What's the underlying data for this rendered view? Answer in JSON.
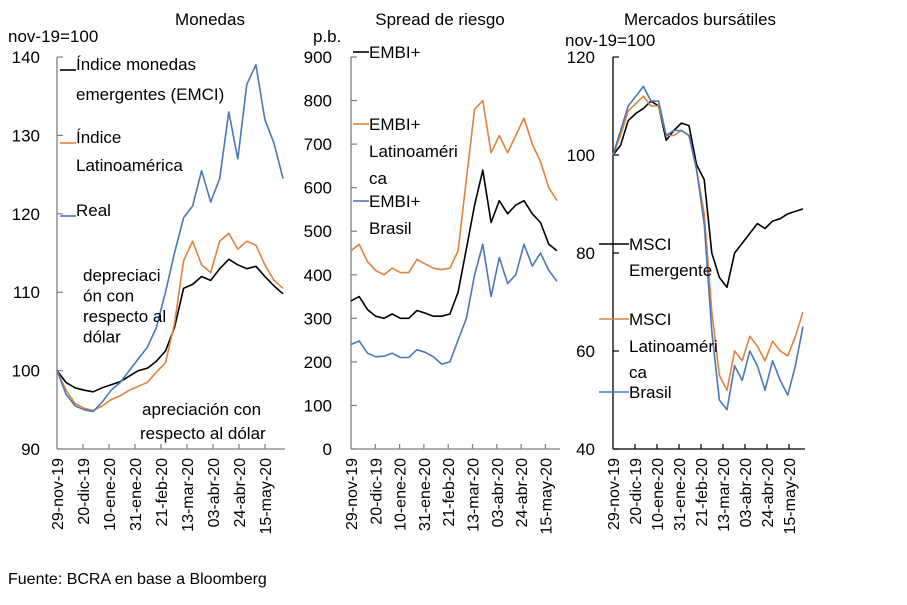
{
  "source": "Fuente: BCRA en base a Bloomberg",
  "colors": {
    "black": "#000000",
    "orange": "#e0823c",
    "blue": "#4a78b8",
    "axis": "#7f7f7f"
  },
  "chart_data": [
    {
      "type": "line",
      "title": "Monedas",
      "ylabel": "nov-19=100",
      "ylim": [
        90,
        140
      ],
      "yticks": [
        "90",
        "100",
        "110",
        "120",
        "130",
        "140"
      ],
      "categories": [
        "29-nov-19",
        "20-dic-19",
        "10-ene-20",
        "31-ene-20",
        "21-feb-20",
        "13-mar-20",
        "03-abr-20",
        "24-abr-20",
        "15-may-20"
      ],
      "annotations": [
        "depreciación con respecto al dólar",
        "apreciación con respecto al dólar"
      ],
      "annotation_lines": [
        [
          "depreciaci",
          "ón con",
          "respecto al",
          "dólar"
        ],
        [
          "apreciación con",
          "respecto al dólar"
        ]
      ],
      "legend": "top-left",
      "series": [
        {
          "name": "Índice monedas emergentes (EMCI)",
          "legend_lines": [
            "Índice monedas",
            "emergentes (EMCI)"
          ],
          "color": "black",
          "values": [
            100,
            98.5,
            97.8,
            97.5,
            97.3,
            97.8,
            98.2,
            98.6,
            99.3,
            100.0,
            100.3,
            101.2,
            102.5,
            105.5,
            110.5,
            111.0,
            112.0,
            111.5,
            113.0,
            114.2,
            113.5,
            113.0,
            113.3,
            112.0,
            110.8,
            109.8
          ]
        },
        {
          "name": "Índice Latinoamérica",
          "legend_lines": [
            "Índice",
            "Latinoamérica"
          ],
          "color": "orange",
          "values": [
            100,
            97.5,
            95.8,
            95.2,
            94.9,
            95.5,
            96.3,
            96.8,
            97.5,
            98.0,
            98.5,
            99.8,
            101.0,
            106.0,
            114.0,
            116.5,
            113.5,
            112.5,
            116.5,
            117.5,
            115.5,
            116.5,
            116.0,
            113.5,
            111.5,
            110.5
          ]
        },
        {
          "name": "Real",
          "legend_lines": [
            "Real"
          ],
          "color": "blue",
          "values": [
            100,
            97.0,
            95.5,
            95.0,
            94.8,
            96.0,
            97.5,
            98.5,
            100.0,
            101.5,
            103.0,
            105.5,
            110.0,
            115.0,
            119.5,
            121.0,
            125.5,
            121.5,
            124.5,
            133.0,
            127.0,
            136.5,
            139.0,
            132.0,
            129.0,
            124.5
          ]
        }
      ]
    },
    {
      "type": "line",
      "title": "Spread de riesgo",
      "ylabel": "p.b.",
      "ylim": [
        0,
        900
      ],
      "yticks": [
        "0",
        "100",
        "200",
        "300",
        "400",
        "500",
        "600",
        "700",
        "800",
        "900"
      ],
      "categories": [
        "29-nov-19",
        "20-dic-19",
        "10-ene-20",
        "31-ene-20",
        "21-feb-20",
        "13-mar-20",
        "03-abr-20",
        "24-abr-20",
        "15-may-20"
      ],
      "legend": "top-left",
      "series": [
        {
          "name": "EMBI+",
          "legend_lines": [
            "EMBI+"
          ],
          "color": "black",
          "values": [
            340,
            350,
            320,
            305,
            300,
            310,
            300,
            300,
            318,
            312,
            305,
            305,
            310,
            360,
            460,
            560,
            640,
            520,
            570,
            540,
            560,
            570,
            540,
            520,
            470,
            455
          ]
        },
        {
          "name": "EMBI+ Latinoamérica",
          "legend_lines": [
            "EMBI+",
            "Latinoaméri",
            "ca"
          ],
          "color": "orange",
          "values": [
            455,
            470,
            430,
            410,
            400,
            415,
            405,
            405,
            435,
            425,
            415,
            412,
            415,
            455,
            620,
            780,
            800,
            680,
            720,
            680,
            720,
            760,
            700,
            660,
            600,
            570
          ]
        },
        {
          "name": "EMBI+ Brasil",
          "legend_lines": [
            "EMBI+",
            "Brasil"
          ],
          "color": "blue",
          "values": [
            240,
            248,
            220,
            212,
            213,
            220,
            210,
            210,
            228,
            222,
            212,
            195,
            200,
            250,
            300,
            400,
            470,
            350,
            440,
            380,
            400,
            470,
            420,
            450,
            410,
            385
          ]
        }
      ]
    },
    {
      "type": "line",
      "title": "Mercados bursátiles",
      "ylabel": "nov-19=100",
      "ylim": [
        40,
        120
      ],
      "yticks": [
        "40",
        "60",
        "80",
        "100",
        "120"
      ],
      "categories": [
        "29-nov-19",
        "20-dic-19",
        "10-ene-20",
        "31-ene-20",
        "21-feb-20",
        "13-mar-20",
        "03-abr-20",
        "24-abr-20",
        "15-may-20"
      ],
      "legend": "left",
      "series": [
        {
          "name": "MSCI Emergente",
          "legend_lines": [
            "MSCI",
            "Emergente"
          ],
          "color": "black",
          "values": [
            100,
            102,
            107,
            108.5,
            109.5,
            111,
            110,
            103,
            105,
            106.5,
            106,
            98,
            95,
            80,
            75,
            73,
            80,
            82,
            84,
            86,
            85,
            86.5,
            87,
            88,
            88.5,
            89
          ]
        },
        {
          "name": "MSCI Latinoamérica",
          "legend_lines": [
            "MSCI",
            "Latinoaméri",
            "ca"
          ],
          "color": "orange",
          "values": [
            100,
            104,
            109,
            110.5,
            112,
            110,
            110,
            104,
            104,
            105,
            104,
            97,
            88,
            68,
            55,
            52,
            60,
            58,
            63,
            61,
            58,
            62,
            60,
            59,
            63,
            68
          ]
        },
        {
          "name": "Brasil",
          "legend_lines": [
            "Brasil"
          ],
          "color": "blue",
          "values": [
            100,
            105,
            110,
            112,
            114,
            111,
            111,
            104,
            105,
            105,
            104,
            97,
            86,
            64,
            50,
            48,
            57,
            54,
            60,
            57,
            52,
            58,
            54,
            51,
            57,
            65
          ]
        }
      ]
    }
  ]
}
